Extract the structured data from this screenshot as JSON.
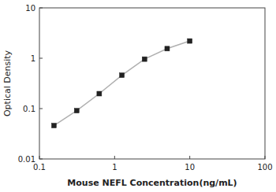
{
  "chart_data": {
    "type": "line",
    "xlabel": "Mouse NEFL Concentration(ng/mL)",
    "ylabel": "Optical Density",
    "x": [
      0.156,
      0.313,
      0.625,
      1.25,
      2.5,
      5.0,
      10.0
    ],
    "values": [
      0.046,
      0.091,
      0.198,
      0.46,
      0.96,
      1.55,
      2.2
    ],
    "xlim": [
      0.1,
      100
    ],
    "ylim": [
      0.01,
      10
    ],
    "xticks": [
      0.1,
      1,
      10,
      100
    ],
    "yticks": [
      0.01,
      0.1,
      1,
      10
    ],
    "log": true,
    "grid": false,
    "color": "#b0b0b0",
    "marker": "square"
  }
}
